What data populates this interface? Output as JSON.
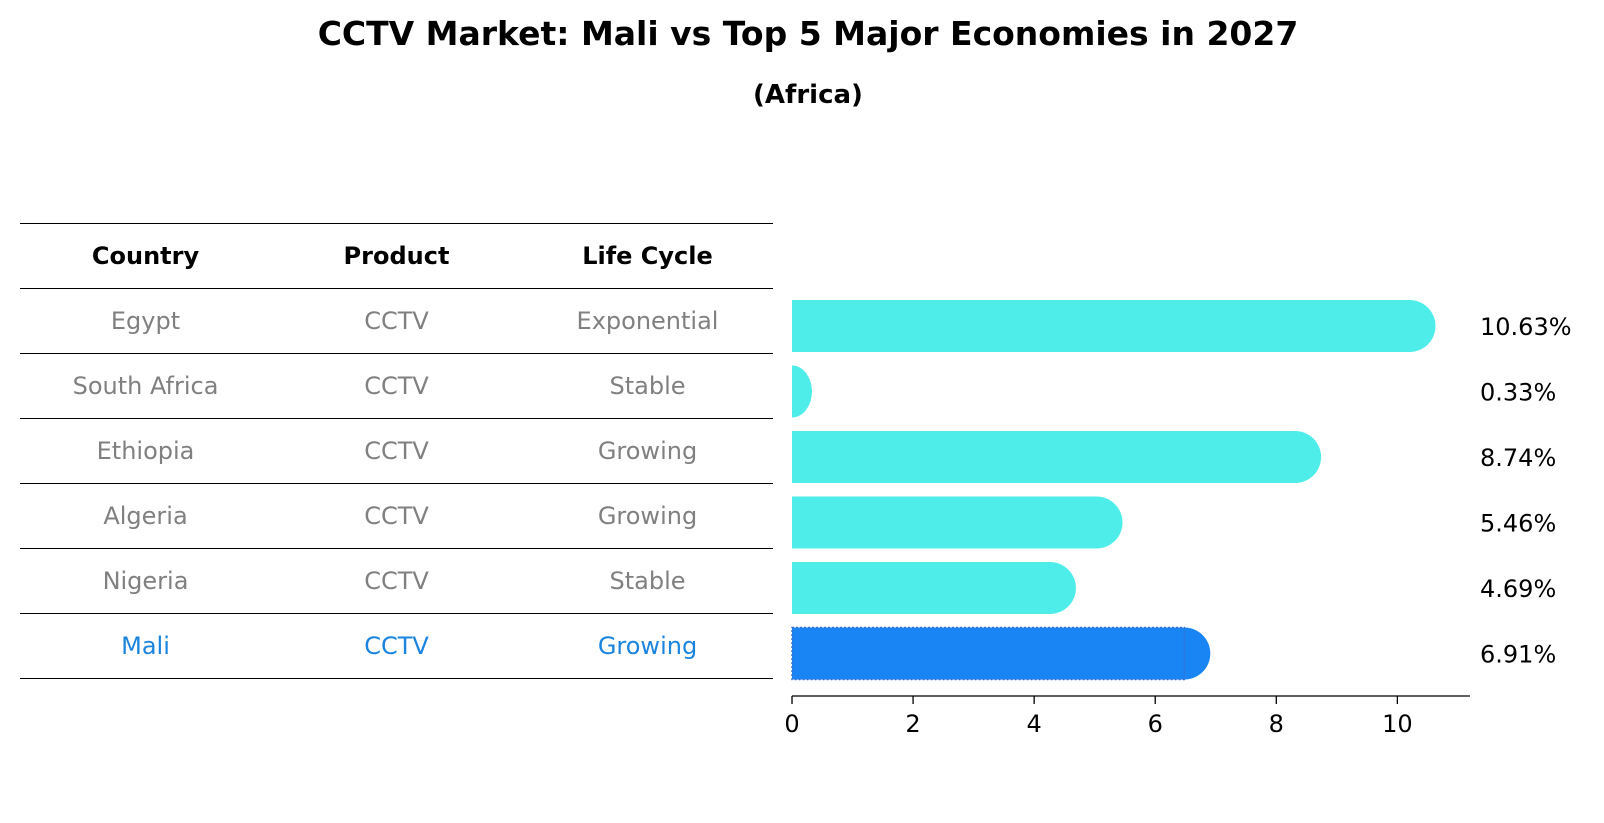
{
  "title": "CCTV Market: Mali vs Top 5 Major Economies in 2027",
  "subtitle": "(Africa)",
  "table": {
    "headers": [
      "Country",
      "Product",
      "Life Cycle"
    ],
    "rows": [
      {
        "country": "Egypt",
        "product": "CCTV",
        "life_cycle": "Exponential"
      },
      {
        "country": "South Africa",
        "product": "CCTV",
        "life_cycle": "Stable"
      },
      {
        "country": "Ethiopia",
        "product": "CCTV",
        "life_cycle": "Growing"
      },
      {
        "country": "Algeria",
        "product": "CCTV",
        "life_cycle": "Growing"
      },
      {
        "country": "Nigeria",
        "product": "CCTV",
        "life_cycle": "Stable"
      },
      {
        "country": "Mali",
        "product": "CCTV",
        "life_cycle": "Growing"
      }
    ]
  },
  "chart_data": {
    "type": "bar",
    "orientation": "horizontal",
    "categories": [
      "Egypt",
      "South Africa",
      "Ethiopia",
      "Algeria",
      "Nigeria",
      "Mali"
    ],
    "values": [
      10.63,
      0.33,
      8.74,
      5.46,
      4.69,
      6.91
    ],
    "value_labels": [
      "10.63%",
      "0.33%",
      "8.74%",
      "5.46%",
      "4.69%",
      "6.91%"
    ],
    "highlight": "Mali",
    "xlim": [
      0,
      11.2
    ],
    "xticks": [
      0,
      2,
      4,
      6,
      8,
      10
    ],
    "xtick_labels": [
      "0",
      "2",
      "4",
      "6",
      "8",
      "10"
    ],
    "colors": {
      "default": "#4eede9",
      "highlight": "#1984f4"
    }
  }
}
